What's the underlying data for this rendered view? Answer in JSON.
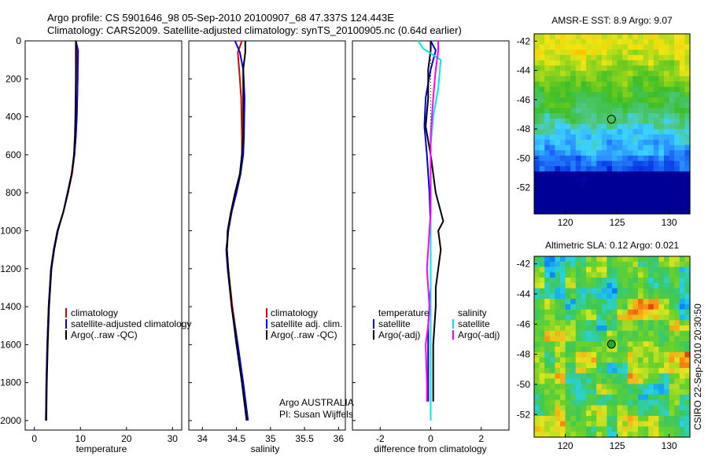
{
  "header": {
    "line1": "Argo profile: CS 5901646_98 05-Sep-2010 20100907_68 47.337S 124.443E",
    "line2": "Climatology: CARS2009. Satellite-adjusted climatology: synTS_20100905.nc (0.64d earlier)"
  },
  "side_label": "CSIRO 22-Sep-2010 20:30:50",
  "credits": {
    "line1": "Argo AUSTRALIA",
    "line2": "PI: Susan Wijffels"
  },
  "colors": {
    "red": "#e00000",
    "blue": "#0000e0",
    "black": "#000000",
    "cyan": "#00e8e8",
    "magenta": "#ff00ff"
  },
  "chart_data": [
    {
      "id": "temperature",
      "type": "line",
      "xlabel": "temperature",
      "xlim": [
        -2,
        32
      ],
      "ylim": [
        2050,
        0
      ],
      "xticks": [
        0,
        10,
        20,
        30
      ],
      "yticks": [
        0,
        200,
        400,
        600,
        800,
        1000,
        1200,
        1400,
        1600,
        1800,
        2000
      ],
      "legend": [
        "climatology",
        "satellite-adjusted climatology",
        "Argo(..raw -QC)"
      ],
      "series": [
        {
          "name": "climatology",
          "color": "red",
          "x": [
            9.0,
            9.3,
            9.4,
            9.2,
            9.0,
            8.7,
            8.2,
            7.3,
            6.3,
            5.0,
            4.2,
            3.6,
            3.1,
            2.8,
            2.6,
            2.5
          ],
          "y": [
            0,
            50,
            200,
            400,
            500,
            600,
            700,
            800,
            900,
            1000,
            1100,
            1200,
            1400,
            1600,
            1800,
            2000
          ]
        },
        {
          "name": "satellite-adjusted climatology",
          "color": "blue",
          "x": [
            9.0,
            9.5,
            9.4,
            9.2,
            9.0,
            8.7,
            8.1,
            7.2,
            6.3,
            5.0,
            4.2,
            3.6,
            3.1,
            2.8,
            2.6,
            2.5
          ],
          "y": [
            0,
            50,
            200,
            400,
            500,
            600,
            700,
            800,
            900,
            1000,
            1100,
            1200,
            1400,
            1600,
            1800,
            2000
          ]
        },
        {
          "name": "Argo(..raw -QC)",
          "color": "black",
          "x": [
            9.0,
            9.0,
            9.0,
            8.9,
            8.8,
            8.6,
            8.1,
            7.3,
            6.3,
            5.1,
            4.3,
            3.7,
            3.2,
            2.9,
            2.7,
            2.6
          ],
          "y": [
            0,
            50,
            200,
            400,
            500,
            600,
            700,
            800,
            900,
            1000,
            1100,
            1200,
            1400,
            1600,
            1800,
            2000
          ]
        }
      ]
    },
    {
      "id": "salinity",
      "type": "line",
      "xlabel": "salinity",
      "xlim": [
        33.8,
        36.1
      ],
      "ylim": [
        2050,
        0
      ],
      "xticks": [
        34,
        34.5,
        35,
        35.5,
        36
      ],
      "legend": [
        "climatology",
        "satellite adj. clim.",
        "Argo(..raw -QC)"
      ],
      "series": [
        {
          "name": "climatology",
          "color": "red",
          "x": [
            34.58,
            34.52,
            34.54,
            34.57,
            34.58,
            34.58,
            34.56,
            34.5,
            34.43,
            34.38,
            34.36,
            34.38,
            34.44,
            34.52,
            34.59,
            34.65
          ],
          "y": [
            0,
            60,
            150,
            300,
            500,
            600,
            700,
            800,
            900,
            1000,
            1100,
            1200,
            1400,
            1600,
            1800,
            2000
          ]
        },
        {
          "name": "satellite adj. clim.",
          "color": "blue",
          "x": [
            34.48,
            34.55,
            34.6,
            34.62,
            34.61,
            34.6,
            34.56,
            34.5,
            34.43,
            34.38,
            34.35,
            34.37,
            34.43,
            34.52,
            34.6,
            34.67
          ],
          "y": [
            0,
            60,
            150,
            300,
            500,
            600,
            700,
            800,
            900,
            1000,
            1100,
            1200,
            1400,
            1600,
            1800,
            2000
          ]
        },
        {
          "name": "Argo(..raw -QC)",
          "color": "black",
          "x": [
            34.63,
            34.63,
            34.6,
            34.6,
            34.6,
            34.58,
            34.55,
            34.48,
            34.42,
            34.37,
            34.36,
            34.38,
            34.43,
            34.5,
            34.58,
            34.65
          ],
          "y": [
            0,
            60,
            150,
            300,
            500,
            600,
            700,
            800,
            900,
            1000,
            1100,
            1200,
            1400,
            1600,
            1800,
            2000
          ]
        }
      ]
    },
    {
      "id": "difference",
      "type": "line",
      "xlabel": "difference from climatology",
      "xlim": [
        -3.1,
        3.1
      ],
      "ylim": [
        2050,
        0
      ],
      "xticks": [
        -2,
        0,
        2
      ],
      "legend_groups": [
        {
          "heading": "temperature",
          "items": [
            "satellite",
            "Argo(-adj)"
          ]
        },
        {
          "heading": "salinity",
          "items": [
            "satellite",
            "Argo(-adj)"
          ]
        }
      ],
      "series": [
        {
          "name": "temperature satellite",
          "color": "blue",
          "x": [
            0.0,
            0.2,
            0.0,
            -0.2,
            -0.25,
            -0.15,
            -0.05,
            0.0,
            0.0,
            0.0,
            0.0,
            -0.05,
            -0.1,
            -0.1,
            -0.1,
            -0.1
          ],
          "y": [
            0,
            50,
            150,
            300,
            450,
            600,
            800,
            1000,
            1100,
            1200,
            1300,
            1400,
            1500,
            1600,
            1800,
            1900
          ]
        },
        {
          "name": "temperature Argo(-adj)",
          "color": "black",
          "x": [
            0.0,
            0.0,
            -0.1,
            -0.1,
            -0.2,
            0.0,
            0.2,
            0.5,
            0.3,
            0.4,
            0.3,
            0.2,
            0.2,
            0.1,
            0.1,
            0.1
          ],
          "y": [
            0,
            50,
            150,
            300,
            450,
            600,
            800,
            950,
            1000,
            1100,
            1200,
            1300,
            1400,
            1600,
            1800,
            1900
          ]
        },
        {
          "name": "salinity satellite",
          "color": "cyan",
          "x": [
            -0.5,
            -0.3,
            0.4,
            0.3,
            0.1,
            0.0,
            0.0,
            0.0,
            0.0,
            0.0,
            0.0,
            0.0,
            0.0,
            0.0,
            0.0,
            0.0
          ],
          "y": [
            0,
            40,
            100,
            250,
            400,
            550,
            700,
            800,
            1000,
            1200,
            1400,
            1600,
            1800,
            1900,
            1950,
            2000
          ]
        },
        {
          "name": "salinity Argo(-adj)",
          "color": "magenta",
          "x": [
            0.3,
            0.3,
            0.2,
            0.1,
            0.0,
            0.0,
            0.0,
            -0.05,
            -0.1,
            -0.15,
            -0.1,
            -0.05,
            -0.1,
            -0.2,
            -0.15,
            -0.15
          ],
          "y": [
            0,
            50,
            150,
            300,
            500,
            700,
            900,
            1000,
            1100,
            1200,
            1300,
            1400,
            1500,
            1600,
            1800,
            1900
          ]
        }
      ]
    },
    {
      "id": "sst_map",
      "type": "heatmap",
      "title": "AMSR-E SST: 8.9 Argo: 9.07",
      "xlim": [
        117,
        132
      ],
      "ylim": [
        -53.8,
        -41.5
      ],
      "xticks": [
        120,
        125,
        130
      ],
      "yticks": [
        -42,
        -44,
        -46,
        -48,
        -50,
        -52
      ],
      "marker": {
        "lon": 124.443,
        "lat": -47.337
      }
    },
    {
      "id": "sla_map",
      "type": "heatmap",
      "title": "Altimetric SLA: 0.12 Argo: 0.021",
      "xlim": [
        117,
        132
      ],
      "ylim": [
        -53.5,
        -41.5
      ],
      "xticks": [
        120,
        125,
        130
      ],
      "yticks": [
        -42,
        -44,
        -46,
        -48,
        -50,
        -52
      ],
      "marker": {
        "lon": 124.443,
        "lat": -47.337
      }
    }
  ]
}
